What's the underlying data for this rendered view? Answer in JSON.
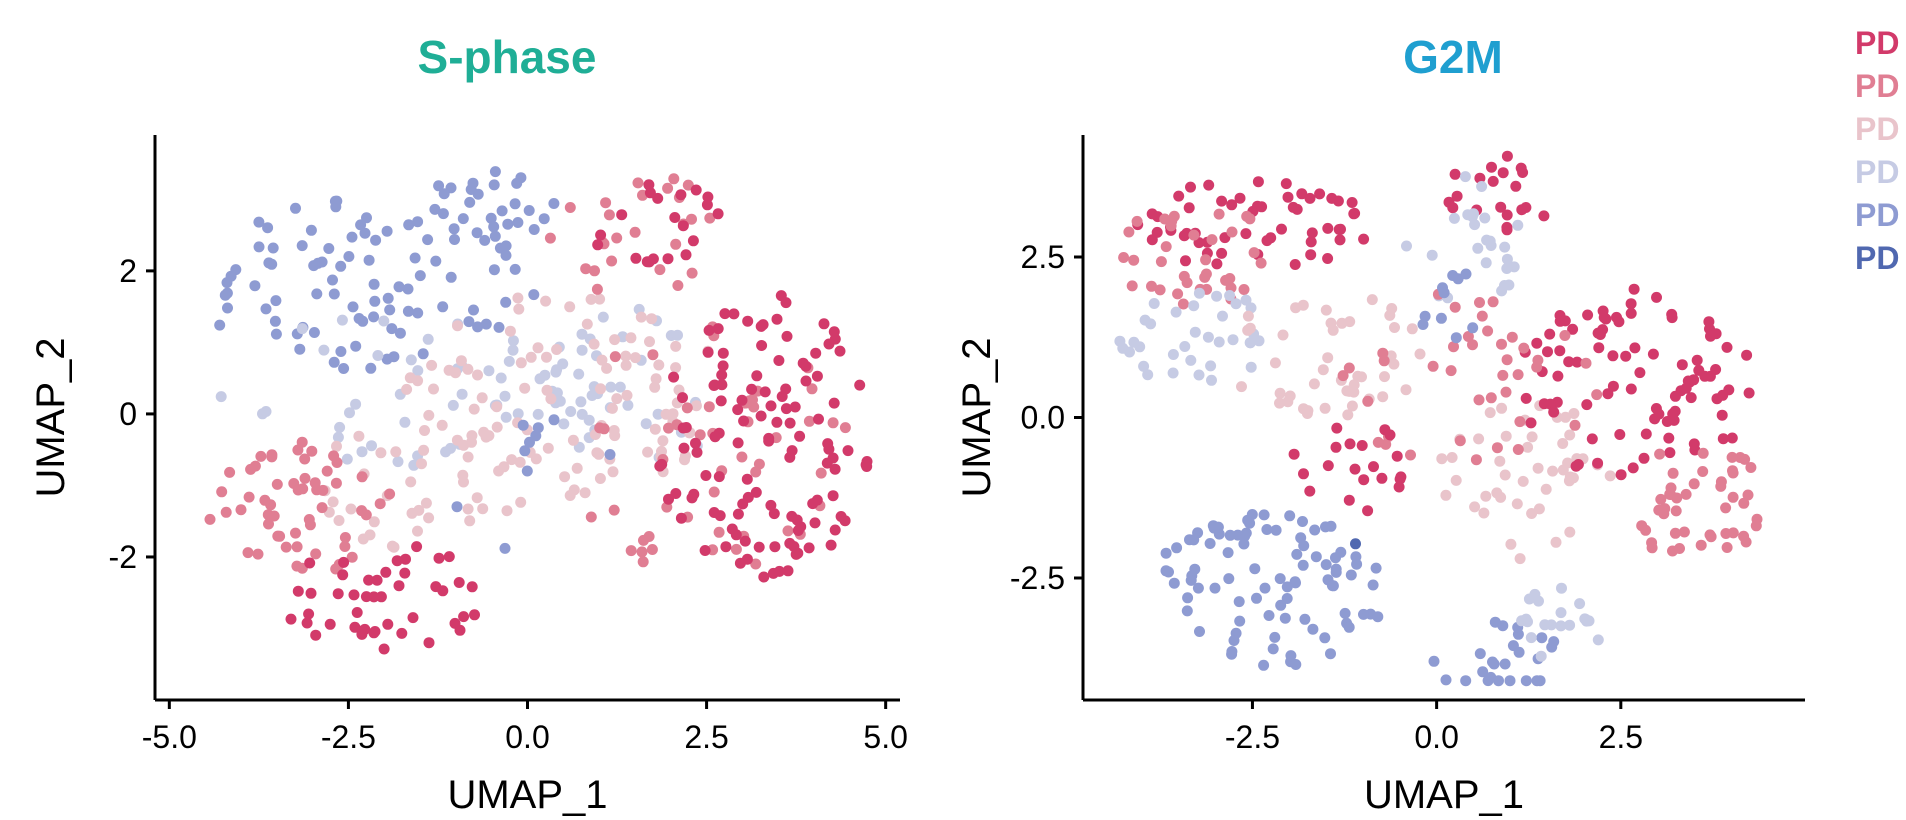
{
  "colors": {
    "PD1": "#d23a6a",
    "PD2": "#e07e93",
    "PD3": "#e9c4cb",
    "PD4": "#c6cbe4",
    "PD5": "#8e9bd2",
    "PD6": "#5068b0"
  },
  "legend": {
    "items": [
      {
        "label": "PD",
        "color": "#d23a6a"
      },
      {
        "label": "PD",
        "color": "#e07e93"
      },
      {
        "label": "PD",
        "color": "#e9c4cb"
      },
      {
        "label": "PD",
        "color": "#c6cbe4"
      },
      {
        "label": "PD",
        "color": "#8e9bd2"
      },
      {
        "label": "PD",
        "color": "#5068b0"
      }
    ]
  },
  "chart_data": [
    {
      "type": "scatter",
      "title": "S-phase",
      "title_color": "#1fae96",
      "xlabel": "UMAP_1",
      "ylabel": "UMAP_2",
      "xlim": [
        -5.2,
        5.2
      ],
      "ylim": [
        -4.0,
        3.9
      ],
      "xticks": [
        -5.0,
        -2.5,
        0.0,
        2.5,
        5.0
      ],
      "xtick_labels": [
        "-5.0",
        "-2.5",
        "0.0",
        "2.5",
        "5.0"
      ],
      "yticks": [
        2,
        0,
        -2
      ],
      "ytick_labels": [
        "2",
        "0",
        "-2"
      ],
      "grid": false,
      "legend": "right",
      "regions": [
        {
          "color": "PD5",
          "cx": -2.2,
          "cy": 1.8,
          "rx": 2.5,
          "ry": 1.2,
          "n": 90,
          "seed": 11
        },
        {
          "color": "PD5",
          "cx": -0.5,
          "cy": 2.9,
          "rx": 1.0,
          "ry": 0.5,
          "n": 25,
          "seed": 12
        },
        {
          "color": "PD4",
          "cx": -1.5,
          "cy": 0.3,
          "rx": 3.0,
          "ry": 1.1,
          "n": 55,
          "seed": 13
        },
        {
          "color": "PD4",
          "cx": 1.5,
          "cy": 0.5,
          "rx": 1.5,
          "ry": 1.3,
          "n": 30,
          "seed": 14
        },
        {
          "color": "PD3",
          "cx": 0.5,
          "cy": 0.3,
          "rx": 2.2,
          "ry": 1.5,
          "n": 95,
          "seed": 15
        },
        {
          "color": "PD3",
          "cx": -1.5,
          "cy": -1.0,
          "rx": 1.5,
          "ry": 0.9,
          "n": 40,
          "seed": 16
        },
        {
          "color": "PD2",
          "cx": -3.2,
          "cy": -1.3,
          "rx": 1.3,
          "ry": 1.0,
          "n": 55,
          "seed": 17
        },
        {
          "color": "PD2",
          "cx": 2.5,
          "cy": -0.5,
          "rx": 2.0,
          "ry": 1.8,
          "n": 50,
          "seed": 18
        },
        {
          "color": "PD2",
          "cx": 1.5,
          "cy": 2.5,
          "rx": 1.2,
          "ry": 0.9,
          "n": 25,
          "seed": 19
        },
        {
          "color": "PD1",
          "cx": 3.3,
          "cy": -0.3,
          "rx": 1.5,
          "ry": 2.0,
          "n": 120,
          "seed": 20
        },
        {
          "color": "PD1",
          "cx": -2.0,
          "cy": -2.6,
          "rx": 1.4,
          "ry": 0.9,
          "n": 45,
          "seed": 21
        },
        {
          "color": "PD1",
          "cx": 1.8,
          "cy": 2.7,
          "rx": 1.0,
          "ry": 0.6,
          "n": 20,
          "seed": 22
        },
        {
          "color": "PD5",
          "cx": 0.0,
          "cy": -1.0,
          "rx": 1.5,
          "ry": 1.0,
          "n": 10,
          "seed": 23
        }
      ]
    },
    {
      "type": "scatter",
      "title": "G2M",
      "title_color": "#1f9fd0",
      "xlabel": "UMAP_1",
      "ylabel": "UMAP_2",
      "xlim": [
        -4.8,
        5.0
      ],
      "ylim": [
        -4.4,
        4.4
      ],
      "xticks": [
        -2.5,
        0.0,
        2.5
      ],
      "xtick_labels": [
        "-2.5",
        "0.0",
        "2.5"
      ],
      "yticks": [
        2.5,
        0.0,
        -2.5
      ],
      "ytick_labels": [
        "2.5",
        "0.0",
        "-2.5"
      ],
      "grid": false,
      "legend": "right",
      "regions": [
        {
          "color": "PD1",
          "cx": -2.5,
          "cy": 3.0,
          "rx": 1.6,
          "ry": 0.7,
          "n": 55,
          "seed": 31
        },
        {
          "color": "PD2",
          "cx": -3.3,
          "cy": 2.5,
          "rx": 1.2,
          "ry": 0.8,
          "n": 35,
          "seed": 32
        },
        {
          "color": "PD1",
          "cx": 0.9,
          "cy": 3.5,
          "rx": 0.8,
          "ry": 0.6,
          "n": 20,
          "seed": 33
        },
        {
          "color": "PD4",
          "cx": -3.3,
          "cy": 1.2,
          "rx": 1.0,
          "ry": 0.9,
          "n": 35,
          "seed": 34
        },
        {
          "color": "PD3",
          "cx": -1.5,
          "cy": 1.0,
          "rx": 1.4,
          "ry": 1.0,
          "n": 45,
          "seed": 35
        },
        {
          "color": "PD3",
          "cx": 1.2,
          "cy": -1.0,
          "rx": 1.2,
          "ry": 1.3,
          "n": 45,
          "seed": 36
        },
        {
          "color": "PD5",
          "cx": -2.3,
          "cy": -2.7,
          "rx": 1.6,
          "ry": 1.2,
          "n": 90,
          "seed": 37
        },
        {
          "color": "PD5",
          "cx": 0.8,
          "cy": -3.7,
          "rx": 0.9,
          "ry": 0.6,
          "n": 25,
          "seed": 38
        },
        {
          "color": "PD4",
          "cx": 1.7,
          "cy": -3.2,
          "rx": 0.7,
          "ry": 0.6,
          "n": 20,
          "seed": 39
        },
        {
          "color": "PD4",
          "cx": 0.4,
          "cy": 2.8,
          "rx": 1.0,
          "ry": 1.0,
          "n": 25,
          "seed": 40
        },
        {
          "color": "PD1",
          "cx": 2.7,
          "cy": 0.5,
          "rx": 1.6,
          "ry": 1.5,
          "n": 90,
          "seed": 41
        },
        {
          "color": "PD2",
          "cx": 3.5,
          "cy": -1.3,
          "rx": 1.0,
          "ry": 0.9,
          "n": 45,
          "seed": 42
        },
        {
          "color": "PD2",
          "cx": 0.5,
          "cy": 0.5,
          "rx": 1.8,
          "ry": 1.5,
          "n": 40,
          "seed": 43
        },
        {
          "color": "PD1",
          "cx": -1.0,
          "cy": -0.8,
          "rx": 1.0,
          "ry": 0.7,
          "n": 20,
          "seed": 44
        },
        {
          "color": "PD5",
          "cx": 0.3,
          "cy": 1.8,
          "rx": 0.6,
          "ry": 0.6,
          "n": 10,
          "seed": 45
        },
        {
          "color": "PD6",
          "cx": -1.1,
          "cy": -2.0,
          "rx": 0.05,
          "ry": 0.05,
          "n": 1,
          "seed": 46
        }
      ]
    }
  ]
}
